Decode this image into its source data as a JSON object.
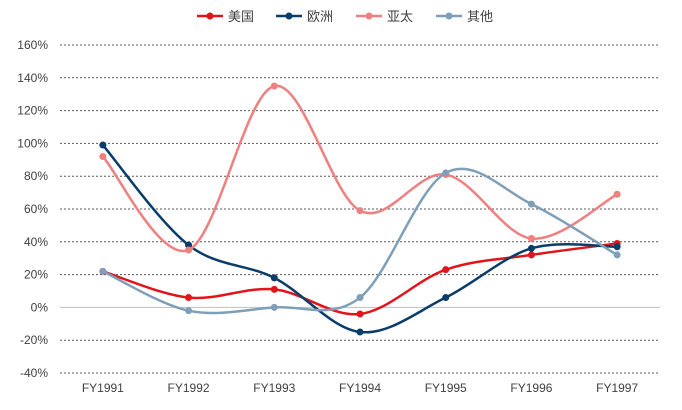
{
  "chart_data": {
    "type": "line",
    "title": "",
    "xlabel": "",
    "ylabel": "",
    "categories": [
      "FY1991",
      "FY1992",
      "FY1993",
      "FY1994",
      "FY1995",
      "FY1996",
      "FY1997"
    ],
    "ylim": [
      -40,
      160
    ],
    "ytick_step": 20,
    "y_format": "percent",
    "smooth": true,
    "grid": true,
    "legend_position": "top-center",
    "series": [
      {
        "name": "美国",
        "color": "#e2141b",
        "values": [
          22,
          6,
          11,
          -4,
          23,
          32,
          39
        ]
      },
      {
        "name": "欧洲",
        "color": "#0b3d6b",
        "values": [
          99,
          38,
          18,
          -15,
          6,
          36,
          37
        ]
      },
      {
        "name": "亚太",
        "color": "#f08080",
        "values": [
          92,
          35,
          135,
          59,
          81,
          42,
          69
        ]
      },
      {
        "name": "其他",
        "color": "#7f9fb8",
        "values": [
          22,
          -2,
          0,
          6,
          82,
          63,
          32
        ]
      }
    ]
  }
}
